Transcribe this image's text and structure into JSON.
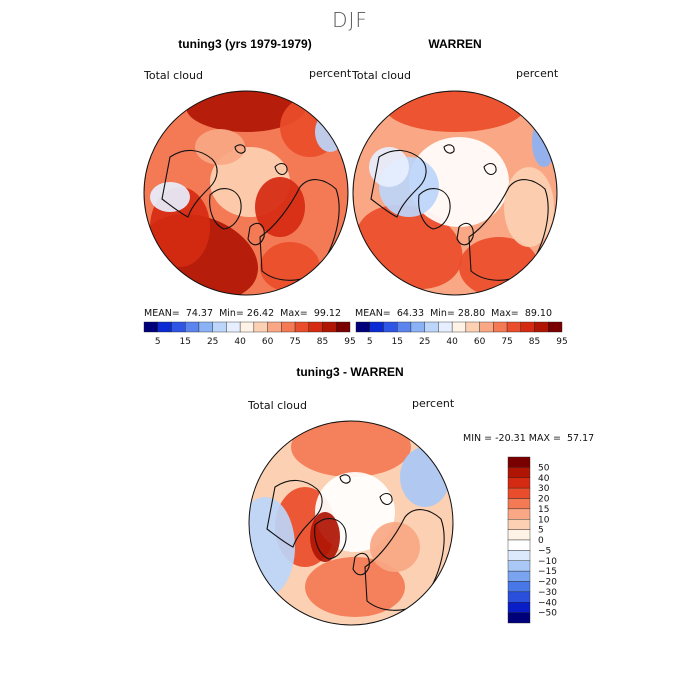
{
  "title": "DJF",
  "chart_data": [
    {
      "type": "heatmap",
      "projection": "north-polar-stereographic",
      "title": "tuning3 (yrs 1979-1979)",
      "variable": "Total cloud",
      "units": "percent",
      "stats": {
        "mean_label": "MEAN=",
        "mean": "74.37",
        "min_label": "Min=",
        "min": "26.42",
        "max_label": "Max=",
        "max": "99.12"
      },
      "colorbar": {
        "orientation": "horizontal",
        "levels": [
          5,
          15,
          25,
          40,
          60,
          75,
          85,
          95
        ],
        "colors": [
          "#00007a",
          "#0a2ad4",
          "#2f55e6",
          "#5b84ee",
          "#8cb2f6",
          "#bcd5fa",
          "#e6efff",
          "#fff2e6",
          "#fcd0b2",
          "#f9a784",
          "#f47a55",
          "#ea4d2b",
          "#d52a12",
          "#b01504",
          "#7a0000"
        ]
      }
    },
    {
      "type": "heatmap",
      "projection": "north-polar-stereographic",
      "title": "WARREN",
      "variable": "Total cloud",
      "units": "percent",
      "stats": {
        "mean_label": "MEAN=",
        "mean": "64.33",
        "min_label": "Min=",
        "min": "28.80",
        "max_label": "Max=",
        "max": "89.10"
      },
      "colorbar": {
        "orientation": "horizontal",
        "levels": [
          5,
          15,
          25,
          40,
          60,
          75,
          85,
          95
        ],
        "colors": [
          "#00007a",
          "#0a2ad4",
          "#2f55e6",
          "#5b84ee",
          "#8cb2f6",
          "#bcd5fa",
          "#e6efff",
          "#fff2e6",
          "#fcd0b2",
          "#f9a784",
          "#f47a55",
          "#ea4d2b",
          "#d52a12",
          "#b01504",
          "#7a0000"
        ]
      }
    },
    {
      "type": "heatmap",
      "projection": "north-polar-stereographic",
      "title": "tuning3 - WARREN",
      "variable": "Total cloud",
      "units": "percent",
      "stats": {
        "min_label": "MIN =",
        "min": "-20.31",
        "max_label": "MAX =",
        "max": "57.17"
      },
      "colorbar": {
        "orientation": "vertical",
        "levels": [
          "50",
          "40",
          "30",
          "20",
          "15",
          "10",
          "5",
          "0",
          "−5",
          "−10",
          "−15",
          "−20",
          "−30",
          "−40",
          "−50"
        ],
        "colors": [
          "#7a0000",
          "#b01504",
          "#d52a12",
          "#ea4d2b",
          "#f47a55",
          "#f9a784",
          "#fcd0b2",
          "#fff2e6",
          "#ffffff",
          "#dce8fb",
          "#aac8f6",
          "#7aa4f0",
          "#4877e8",
          "#2a4fdc",
          "#0a1ec8",
          "#00007a"
        ]
      }
    }
  ]
}
